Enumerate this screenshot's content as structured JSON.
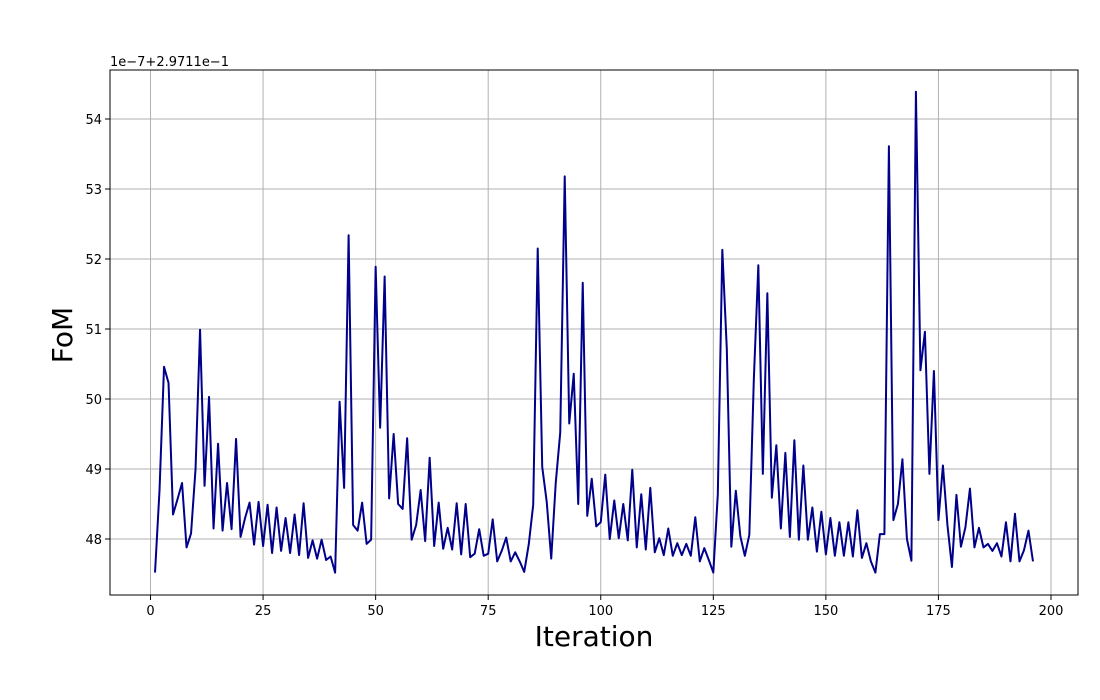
{
  "chart_data": {
    "type": "line",
    "xlabel": "Iteration",
    "ylabel": "FoM",
    "offset_text": "1e−7+2.9711e−1",
    "xlim": [
      -9,
      206
    ],
    "ylim": [
      47.2,
      54.7
    ],
    "xticks": [
      0,
      25,
      50,
      75,
      100,
      125,
      150,
      175,
      200
    ],
    "xtick_labels": [
      "0",
      "25",
      "50",
      "75",
      "100",
      "125",
      "150",
      "175",
      "200"
    ],
    "yticks": [
      48,
      49,
      50,
      51,
      52,
      53,
      54
    ],
    "ytick_labels": [
      "48",
      "49",
      "50",
      "51",
      "52",
      "53",
      "54"
    ],
    "grid": true,
    "line_color": "#00008b",
    "series": [
      {
        "x": [
          1,
          2,
          3,
          4,
          5,
          6,
          7,
          8,
          9,
          10,
          11,
          12,
          13,
          14,
          15,
          16,
          17,
          18,
          19,
          20,
          21,
          22,
          23,
          24,
          25,
          26,
          27,
          28,
          29,
          30,
          31,
          32,
          33,
          34,
          35,
          36,
          37,
          38,
          39,
          40,
          41,
          42,
          43,
          44,
          45,
          46,
          47,
          48,
          49,
          50,
          51,
          52,
          53,
          54,
          55,
          56,
          57,
          58,
          59,
          60,
          61,
          62,
          63,
          64,
          65,
          66,
          67,
          68,
          69,
          70,
          71,
          72,
          73,
          74,
          75,
          76,
          77,
          78,
          79,
          80,
          81,
          82,
          83,
          84,
          85,
          86,
          87,
          88,
          89,
          90,
          91,
          92,
          93,
          94,
          95,
          96,
          97,
          98,
          99,
          100,
          101,
          102,
          103,
          104,
          105,
          106,
          107,
          108,
          109,
          110,
          111,
          112,
          113,
          114,
          115,
          116,
          117,
          118,
          119,
          120,
          121,
          122,
          123,
          124,
          125,
          126,
          127,
          128,
          129,
          130,
          131,
          132,
          133,
          134,
          135,
          136,
          137,
          138,
          139,
          140,
          141,
          142,
          143,
          144,
          145,
          146,
          147,
          148,
          149,
          150,
          151,
          152,
          153,
          154,
          155,
          156,
          157,
          158,
          159,
          160,
          161,
          162,
          163,
          164,
          165,
          166,
          167,
          168,
          169,
          170,
          171,
          172,
          173,
          174,
          175,
          176,
          177,
          178,
          179,
          180,
          181,
          182,
          183,
          184,
          185,
          186,
          187,
          188,
          189,
          190,
          191,
          192,
          193,
          194,
          195,
          196
        ],
        "values": [
          47.52,
          48.7,
          50.46,
          50.23,
          48.35,
          48.57,
          48.8,
          47.88,
          48.08,
          49.0,
          50.99,
          48.76,
          50.03,
          48.15,
          49.36,
          48.12,
          48.8,
          48.14,
          49.43,
          48.03,
          48.3,
          48.52,
          47.92,
          48.53,
          47.9,
          48.49,
          47.8,
          48.45,
          47.83,
          48.3,
          47.8,
          48.35,
          47.77,
          48.51,
          47.73,
          47.98,
          47.72,
          47.99,
          47.7,
          47.75,
          47.52,
          49.96,
          48.73,
          52.34,
          48.2,
          48.12,
          48.52,
          47.93,
          47.99,
          51.89,
          49.59,
          51.75,
          48.58,
          49.5,
          48.5,
          48.43,
          49.44,
          47.99,
          48.2,
          48.7,
          47.97,
          49.16,
          47.9,
          48.52,
          47.86,
          48.16,
          47.85,
          48.51,
          47.78,
          48.5,
          47.74,
          47.79,
          48.14,
          47.76,
          47.79,
          48.28,
          47.68,
          47.83,
          48.02,
          47.68,
          47.81,
          47.68,
          47.53,
          47.92,
          48.49,
          52.15,
          49.03,
          48.53,
          47.72,
          48.8,
          49.52,
          53.18,
          49.65,
          50.36,
          48.5,
          51.66,
          48.33,
          48.86,
          48.18,
          48.24,
          48.92,
          48.0,
          48.55,
          48.01,
          48.5,
          47.98,
          48.99,
          47.88,
          48.64,
          47.85,
          48.73,
          47.81,
          48.01,
          47.77,
          48.15,
          47.76,
          47.94,
          47.77,
          47.93,
          47.76,
          48.31,
          47.68,
          47.87,
          47.7,
          47.52,
          48.64,
          52.13,
          50.71,
          47.89,
          48.69,
          48.04,
          47.76,
          48.06,
          50.28,
          51.91,
          48.93,
          51.51,
          48.59,
          49.34,
          48.15,
          49.23,
          48.03,
          49.41,
          47.99,
          49.05,
          47.99,
          48.45,
          47.82,
          48.39,
          47.78,
          48.3,
          47.76,
          48.24,
          47.76,
          48.24,
          47.75,
          48.41,
          47.73,
          47.94,
          47.68,
          47.52,
          48.07,
          48.07,
          53.61,
          48.27,
          48.5,
          49.14,
          48.0,
          47.69,
          54.39,
          50.41,
          50.96,
          48.93,
          50.4,
          48.27,
          49.05,
          48.2,
          47.6,
          48.63,
          47.89,
          48.17,
          48.72,
          47.88,
          48.16,
          47.88,
          47.93,
          47.83,
          47.94,
          47.75,
          48.24,
          47.68,
          48.36,
          47.68,
          47.84,
          48.12,
          47.68
        ]
      }
    ]
  }
}
